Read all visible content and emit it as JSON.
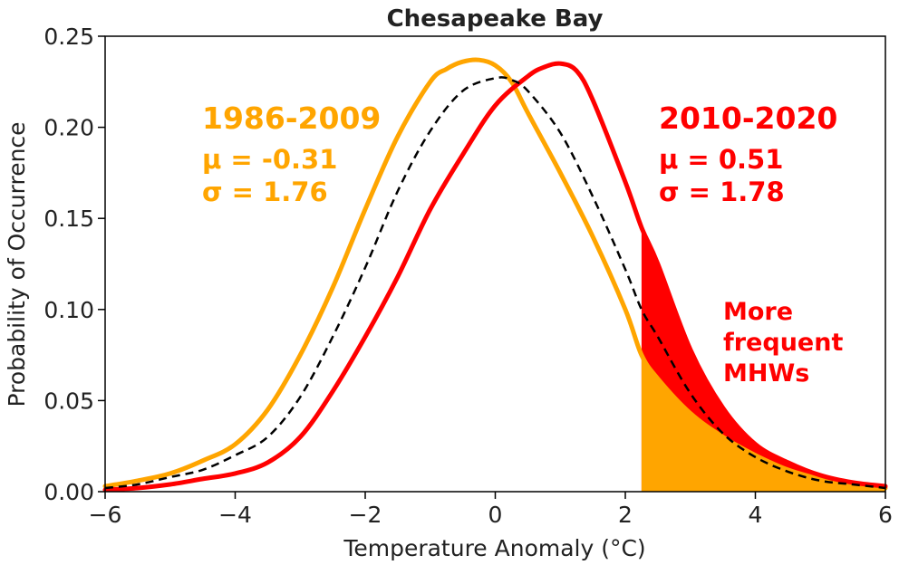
{
  "chart_data": {
    "type": "line",
    "title": "Chesapeake Bay",
    "xlabel": "Temperature Anomaly (°C)",
    "ylabel": "Probability of Occurrence",
    "xlim": [
      -6,
      6
    ],
    "ylim": [
      0,
      0.25
    ],
    "xticks": [
      -6,
      -4,
      -2,
      0,
      2,
      4,
      6
    ],
    "xtick_labels": [
      "−6",
      "−4",
      "−2",
      "0",
      "2",
      "4",
      "6"
    ],
    "yticks": [
      0,
      0.05,
      0.1,
      0.15,
      0.2,
      0.25
    ],
    "ytick_labels": [
      "0.00",
      "0.05",
      "0.10",
      "0.15",
      "0.20",
      "0.25"
    ],
    "grid": false,
    "legend": "none",
    "threshold_x": 2.25,
    "series": [
      {
        "name": "1986-2009",
        "color": "#FFA500",
        "style": "solid",
        "x": [
          -6,
          -5.5,
          -5,
          -4.5,
          -4,
          -3.5,
          -3,
          -2.5,
          -2,
          -1.5,
          -1,
          -0.75,
          -0.5,
          -0.25,
          0,
          0.25,
          0.5,
          1,
          1.5,
          2,
          2.25,
          2.5,
          3,
          3.5,
          4,
          4.5,
          5,
          5.5,
          6
        ],
        "y": [
          0.003,
          0.006,
          0.01,
          0.017,
          0.026,
          0.045,
          0.075,
          0.112,
          0.155,
          0.195,
          0.225,
          0.232,
          0.236,
          0.237,
          0.234,
          0.225,
          0.208,
          0.175,
          0.14,
          0.1,
          0.075,
          0.062,
          0.043,
          0.03,
          0.02,
          0.012,
          0.007,
          0.004,
          0.002
        ]
      },
      {
        "name": "2010-2020",
        "color": "#FF0000",
        "style": "solid",
        "x": [
          -6,
          -5.5,
          -5,
          -4.5,
          -4,
          -3.5,
          -3,
          -2.5,
          -2,
          -1.5,
          -1,
          -0.5,
          0,
          0.5,
          0.75,
          1,
          1.25,
          1.5,
          2,
          2.25,
          2.5,
          3,
          3.5,
          4,
          4.5,
          5,
          5.5,
          6
        ],
        "y": [
          0.001,
          0.002,
          0.004,
          0.007,
          0.01,
          0.016,
          0.03,
          0.055,
          0.085,
          0.118,
          0.155,
          0.185,
          0.212,
          0.228,
          0.233,
          0.235,
          0.231,
          0.215,
          0.17,
          0.145,
          0.125,
          0.078,
          0.046,
          0.026,
          0.016,
          0.009,
          0.005,
          0.003
        ]
      },
      {
        "name": "",
        "color": "#000000",
        "style": "dashed",
        "x": [
          -6,
          -5.5,
          -5,
          -4.5,
          -4,
          -3.5,
          -3,
          -2.5,
          -2,
          -1.5,
          -1,
          -0.5,
          0,
          0.25,
          0.5,
          1,
          1.5,
          2,
          2.25,
          2.5,
          3,
          3.5,
          4,
          4.5,
          5,
          5.5,
          6
        ],
        "y": [
          0.002,
          0.004,
          0.008,
          0.012,
          0.02,
          0.03,
          0.052,
          0.085,
          0.123,
          0.165,
          0.198,
          0.22,
          0.227,
          0.226,
          0.22,
          0.197,
          0.162,
          0.122,
          0.1,
          0.085,
          0.054,
          0.032,
          0.019,
          0.011,
          0.006,
          0.004,
          0.002
        ]
      }
    ],
    "annotations": {
      "early_period": "1986-2009",
      "early_mu": "μ = -0.31",
      "early_sigma": "σ = 1.76",
      "late_period": "2010-2020",
      "late_mu": "μ = 0.51",
      "late_sigma": "σ = 1.78",
      "mhw_line1": "More",
      "mhw_line2": "frequent",
      "mhw_line3": "MHWs"
    }
  }
}
